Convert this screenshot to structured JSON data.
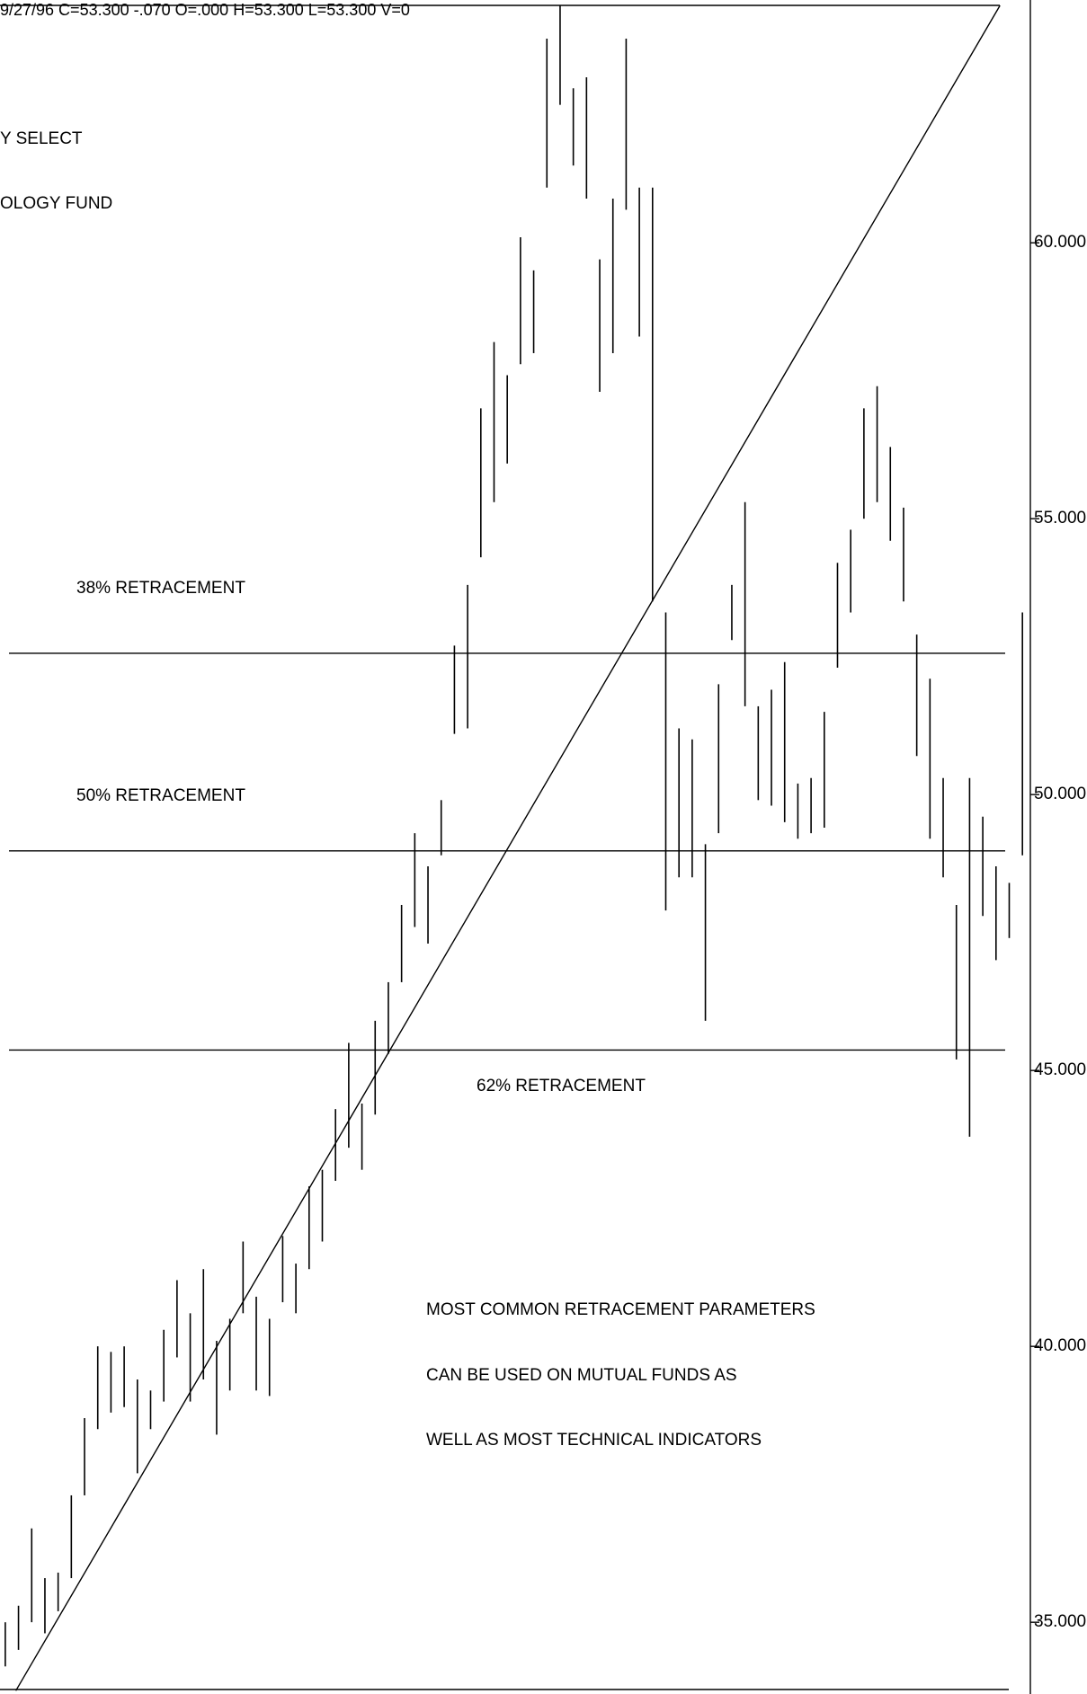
{
  "chart_data": {
    "type": "highlow",
    "header": "9/27/96 C=53.300 -.070 O=.000 H=53.300 L=53.300 V=0",
    "title_lines": [
      "Y SELECT",
      "OLOGY FUND"
    ],
    "high": [
      35.0,
      35.3,
      36.7,
      35.8,
      35.9,
      37.3,
      38.7,
      40.0,
      39.9,
      40.0,
      39.4,
      39.2,
      40.3,
      41.2,
      40.6,
      41.4,
      40.1,
      40.5,
      41.9,
      40.9,
      40.5,
      42.0,
      41.5,
      42.9,
      43.2,
      44.3,
      45.5,
      44.4,
      45.9,
      46.6,
      48.0,
      49.3,
      48.7,
      49.9,
      52.7,
      53.8,
      57.0,
      58.2,
      57.6,
      60.1,
      59.5,
      63.7,
      64.3,
      62.8,
      63.0,
      59.7,
      60.8,
      63.7,
      61.0,
      61.0,
      53.3,
      51.2,
      51.0,
      49.1,
      52.0,
      53.8,
      55.3,
      51.6,
      51.9,
      52.4,
      50.2,
      50.3,
      51.5,
      54.2,
      54.8,
      57.0,
      57.4,
      56.3,
      55.2,
      52.9,
      52.1,
      50.3,
      48.0,
      50.3,
      49.6,
      48.7,
      48.4,
      53.3
    ],
    "low": [
      34.2,
      34.5,
      35.0,
      34.8,
      35.2,
      35.8,
      37.3,
      38.5,
      38.8,
      38.9,
      37.7,
      38.5,
      39.0,
      39.8,
      39.0,
      39.4,
      38.4,
      39.2,
      40.6,
      39.2,
      39.1,
      40.8,
      40.6,
      41.4,
      41.9,
      43.0,
      43.6,
      43.2,
      44.2,
      45.3,
      46.6,
      47.6,
      47.3,
      48.9,
      51.1,
      51.2,
      54.3,
      55.3,
      56.0,
      57.8,
      58.0,
      61.0,
      62.5,
      61.4,
      60.8,
      57.3,
      58.0,
      60.6,
      58.3,
      53.5,
      47.9,
      48.5,
      48.5,
      45.9,
      49.3,
      52.8,
      51.6,
      49.9,
      49.8,
      49.5,
      49.2,
      49.3,
      49.4,
      52.3,
      53.3,
      55.0,
      55.3,
      54.6,
      53.5,
      50.7,
      49.2,
      48.5,
      45.2,
      43.8,
      47.8,
      47.0,
      47.4,
      48.9
    ],
    "levels": [
      52.56,
      48.98,
      45.37
    ],
    "level_labels": [
      "38% RETRACEMENT",
      "50% RETRACEMENT",
      "62% RETRACEMENT"
    ],
    "trend_line": {
      "x": [
        0.8,
        75.3
      ],
      "values": [
        33.76,
        64.3
      ]
    },
    "notes": [
      "MOST COMMON RETRACEMENT PARAMETERS",
      "CAN BE USED ON MUTUAL FUNDS AS",
      "WELL AS MOST TECHNICAL INDICATORS"
    ],
    "xlim": [
      -0.4,
      77.6
    ],
    "ylim": [
      33.7,
      64.4
    ],
    "yticks": [
      {
        "value": 35,
        "label": "35.000"
      },
      {
        "value": 40,
        "label": "40.000"
      },
      {
        "value": 45,
        "label": "45.000"
      },
      {
        "value": 50,
        "label": "50.000"
      },
      {
        "value": 55,
        "label": "55.000"
      },
      {
        "value": 60,
        "label": "60.000"
      }
    ],
    "color": "#000000"
  }
}
